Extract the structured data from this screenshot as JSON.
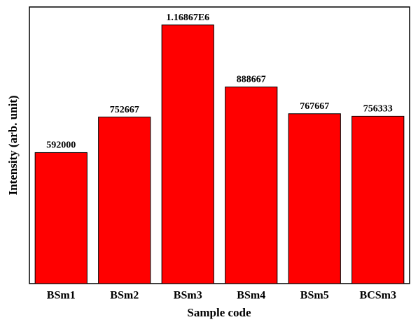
{
  "chart_data": {
    "type": "bar",
    "x_label": "Sample code",
    "y_label": "Intensity (arb. unit)",
    "categories": [
      "BSm1",
      "BSm2",
      "BSm3",
      "BSm4",
      "BSm5",
      "BCSm3"
    ],
    "values": [
      592000,
      752667,
      1168670,
      888667,
      767667,
      756333
    ],
    "value_labels": [
      "592000",
      "752667",
      "1.16867E6",
      "888667",
      "767667",
      "756333"
    ],
    "color": "#ff0000",
    "ylim": [
      0,
      1250000
    ]
  }
}
